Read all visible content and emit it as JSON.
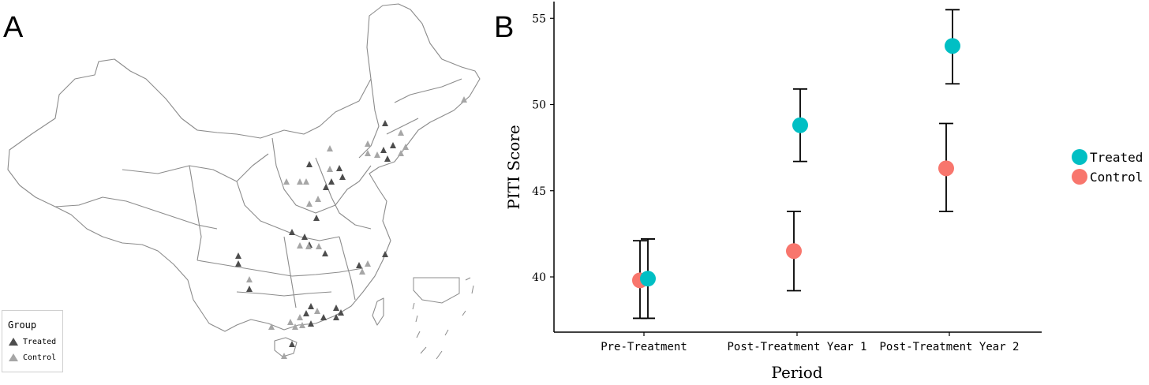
{
  "panel_a": {
    "letter": "A",
    "legend": {
      "title": "Group",
      "items": [
        {
          "label": "Treated",
          "color": "#4d4d4d",
          "icon": "triangle-icon"
        },
        {
          "label": "Control",
          "color": "#a6a6a6",
          "icon": "triangle-icon"
        }
      ]
    }
  },
  "panel_b": {
    "letter": "B"
  },
  "chart_data": {
    "type": "scatter",
    "title": "",
    "xlabel": "Period",
    "ylabel": "PITI Score",
    "categories": [
      "Pre-Treatment",
      "Post-Treatment Year 1",
      "Post-Treatment Year 2"
    ],
    "ylim": [
      37,
      56.5
    ],
    "yticks": [
      40,
      45,
      50,
      55
    ],
    "grid": false,
    "legend_position": "right",
    "error_bars": true,
    "series": [
      {
        "name": "Treated",
        "color": "#00BFC4",
        "values": [
          39.9,
          48.8,
          53.4
        ],
        "lower": [
          37.6,
          46.7,
          51.2
        ],
        "upper": [
          42.2,
          50.9,
          55.5
        ]
      },
      {
        "name": "Control",
        "color": "#F8766D",
        "values": [
          39.8,
          41.5,
          46.3
        ],
        "lower": [
          37.6,
          39.2,
          43.8
        ],
        "upper": [
          42.1,
          43.8,
          48.9
        ]
      }
    ]
  }
}
